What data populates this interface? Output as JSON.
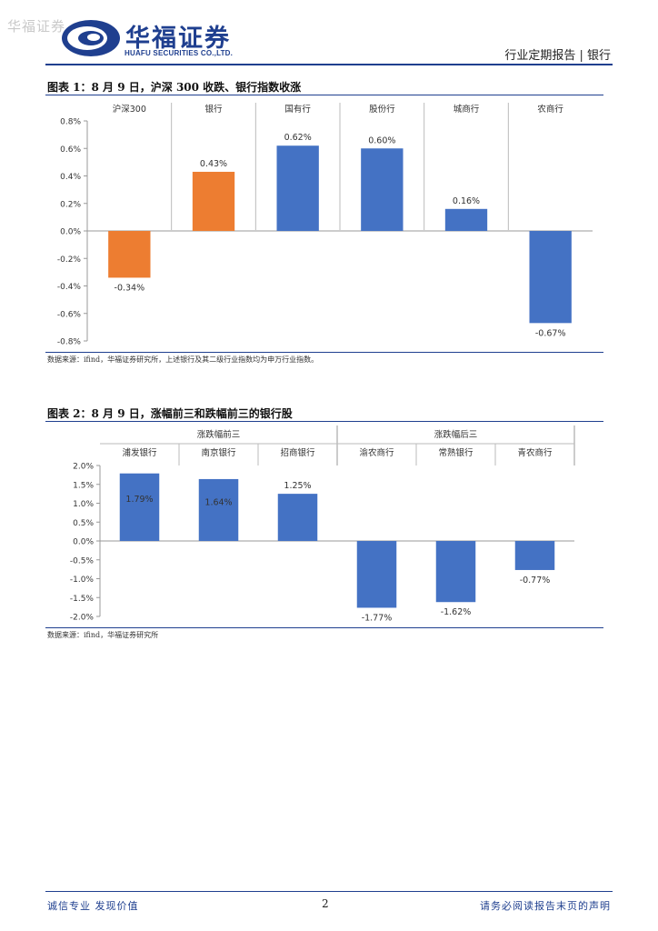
{
  "header": {
    "watermark": "华福证券",
    "logo_cn": "华福证券",
    "logo_en": "HUAFU SECURITIES CO.,LTD.",
    "report_type": "行业定期报告 | 银行"
  },
  "colors": {
    "brand": "#1f3f8f",
    "blue": "#4472c4",
    "orange": "#ed7d31"
  },
  "chart_data": [
    {
      "type": "bar",
      "title": "图表 1：8 月 9 日，沪深 300 收跌、银行指数收涨",
      "categories": [
        "沪深300",
        "银行",
        "国有行",
        "股份行",
        "城商行",
        "农商行"
      ],
      "values": [
        -0.34,
        0.43,
        0.62,
        0.6,
        0.16,
        -0.67
      ],
      "value_labels": [
        "-0.34%",
        "0.43%",
        "0.62%",
        "0.60%",
        "0.16%",
        "-0.67%"
      ],
      "bar_colors": [
        "#ed7d31",
        "#ed7d31",
        "#4472c4",
        "#4472c4",
        "#4472c4",
        "#4472c4"
      ],
      "ylim": [
        -0.8,
        0.8
      ],
      "yticks": [
        0.8,
        0.6,
        0.4,
        0.2,
        0.0,
        -0.2,
        -0.4,
        -0.6,
        -0.8
      ],
      "ytick_labels": [
        "0.8%",
        "0.6%",
        "0.4%",
        "0.2%",
        "0.0%",
        "-0.2%",
        "-0.4%",
        "-0.6%",
        "-0.8%"
      ],
      "source": "数据来源：ifind，华福证券研究所，上述银行及其二级行业指数均为申万行业指数。"
    },
    {
      "type": "bar",
      "title": "图表 2：8 月 9 日，涨幅前三和跌幅前三的银行股",
      "groups": [
        {
          "label": "涨跌幅前三",
          "count": 3
        },
        {
          "label": "涨跌幅后三",
          "count": 3
        }
      ],
      "categories": [
        "浦发银行",
        "南京银行",
        "招商银行",
        "渝农商行",
        "常熟银行",
        "青农商行"
      ],
      "values": [
        1.79,
        1.64,
        1.25,
        -1.77,
        -1.62,
        -0.77
      ],
      "value_labels": [
        "1.79%",
        "1.64%",
        "1.25%",
        "-1.77%",
        "-1.62%",
        "-0.77%"
      ],
      "bar_colors": [
        "#4472c4",
        "#4472c4",
        "#4472c4",
        "#4472c4",
        "#4472c4",
        "#4472c4"
      ],
      "ylim": [
        -2.0,
        2.0
      ],
      "yticks": [
        2.0,
        1.5,
        1.0,
        0.5,
        0.0,
        -0.5,
        -1.0,
        -1.5,
        -2.0
      ],
      "ytick_labels": [
        "2.0%",
        "1.5%",
        "1.0%",
        "0.5%",
        "0.0%",
        "-0.5%",
        "-1.0%",
        "-1.5%",
        "-2.0%"
      ],
      "source": "数据来源：ifind，华福证券研究所"
    }
  ],
  "footer": {
    "left": "诚信专业  发现价值",
    "page": "2",
    "right": "请务必阅读报告末页的声明"
  }
}
